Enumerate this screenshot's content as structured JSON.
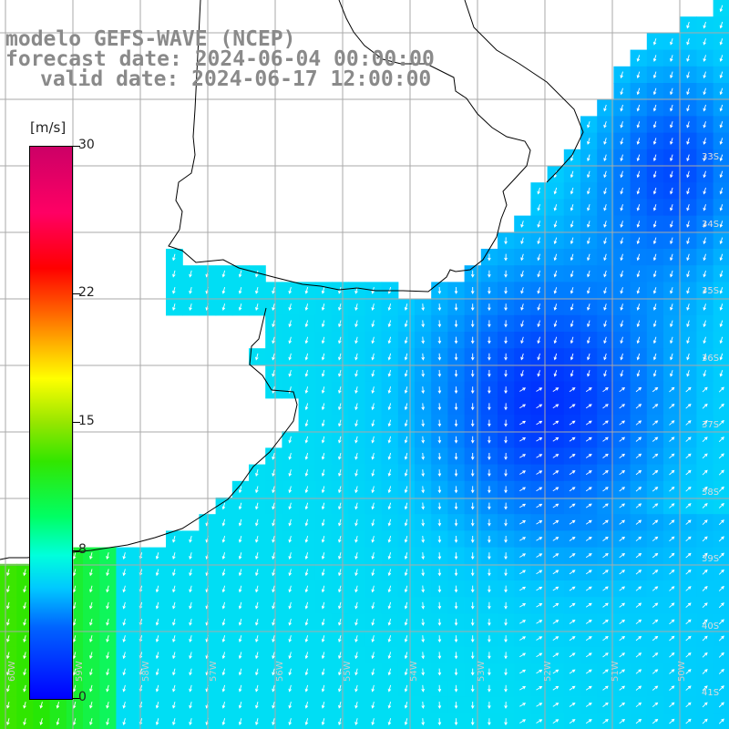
{
  "title": {
    "line1": "modelo GEFS-WAVE (NCEP)",
    "line2": "forecast date: 2024-06-04 00:00:00",
    "line3": "valid date: 2024-06-17 12:00:00"
  },
  "colorbar": {
    "unit": "[m/s]",
    "ticks": [
      {
        "label": "30",
        "value": 30
      },
      {
        "label": "22",
        "value": 22
      },
      {
        "label": "15",
        "value": 15
      },
      {
        "label": "8",
        "value": 8
      },
      {
        "label": "0",
        "value": 0
      }
    ],
    "colors": {
      "low": "#0000ff",
      "mid": "#00e6ff",
      "high": "#cc0066"
    }
  },
  "map": {
    "latitude_labels": [
      "33S",
      "34S",
      "35S",
      "36S",
      "37S",
      "38S",
      "39S",
      "40S",
      "41S"
    ],
    "longitude_labels": [
      "60W",
      "59W",
      "58W",
      "57W",
      "56W",
      "55W",
      "54W",
      "53W",
      "52W",
      "51W",
      "50W"
    ],
    "colors": {
      "land": "#ffffff",
      "grid": "#aaaaaa",
      "coast": "#000000",
      "arrows": "#ffffff"
    }
  }
}
